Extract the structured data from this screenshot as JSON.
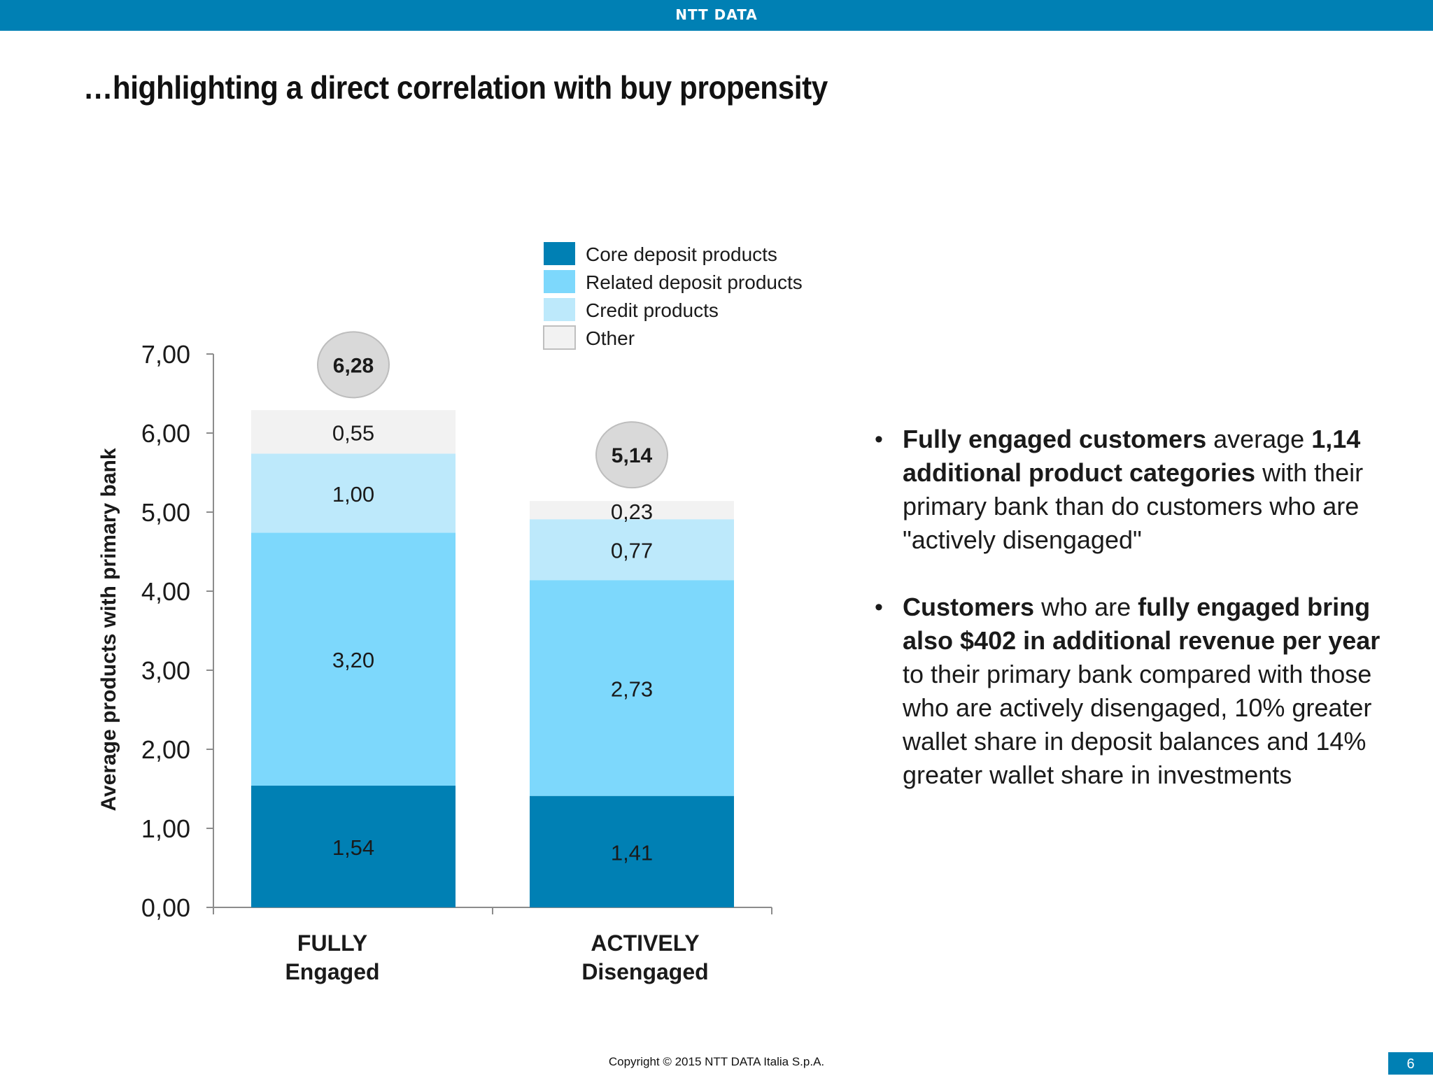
{
  "header": {
    "logo_text": "NTT DATA"
  },
  "title": "…highlighting a direct correlation with buy propensity",
  "chart_data": {
    "type": "bar",
    "stacked": true,
    "categories": [
      {
        "line1": "FULLY",
        "line2": "Engaged"
      },
      {
        "line1": "ACTIVELY",
        "line2": "Disengaged"
      }
    ],
    "series": [
      {
        "name": "Core deposit products",
        "color": "#0080b4",
        "values": [
          1.54,
          1.41
        ],
        "labels": [
          "1,54",
          "1,41"
        ]
      },
      {
        "name": "Related deposit products",
        "color": "#7dd8fc",
        "values": [
          3.2,
          2.73
        ],
        "labels": [
          "3,20",
          "2,73"
        ]
      },
      {
        "name": "Credit products",
        "color": "#bde9fb",
        "values": [
          1.0,
          0.77
        ],
        "labels": [
          "1,00",
          "0,77"
        ]
      },
      {
        "name": "Other",
        "color": "#f2f2f2",
        "values": [
          0.55,
          0.23
        ],
        "labels": [
          "0,55",
          "0,23"
        ]
      }
    ],
    "totals": [
      6.28,
      5.14
    ],
    "total_labels": [
      "6,28",
      "5,14"
    ],
    "ylabel": "Average products with primary bank",
    "ylim": [
      0,
      7
    ],
    "yticks": [
      "0,00",
      "1,00",
      "2,00",
      "3,00",
      "4,00",
      "5,00",
      "6,00",
      "7,00"
    ],
    "legend_position": "top",
    "grid": false
  },
  "bullets": [
    [
      {
        "text": "Fully engaged customers",
        "bold": true
      },
      {
        "text": " average ",
        "bold": false
      },
      {
        "text": "1,14 additional product categories",
        "bold": true
      },
      {
        "text": " with their primary bank than do customers who are \"actively disengaged\"",
        "bold": false
      }
    ],
    [
      {
        "text": "Customers",
        "bold": true
      },
      {
        "text": " who are ",
        "bold": false
      },
      {
        "text": "fully engaged bring also $402 in additional revenue per year",
        "bold": true
      },
      {
        "text": " to their primary bank compared with those who are actively disengaged, 10% greater wallet share in deposit balances and 14% greater wallet share in investments",
        "bold": false
      }
    ]
  ],
  "footer": {
    "copyright": "Copyright © 2015 NTT DATA Italia S.p.A.",
    "page_number": "6"
  }
}
